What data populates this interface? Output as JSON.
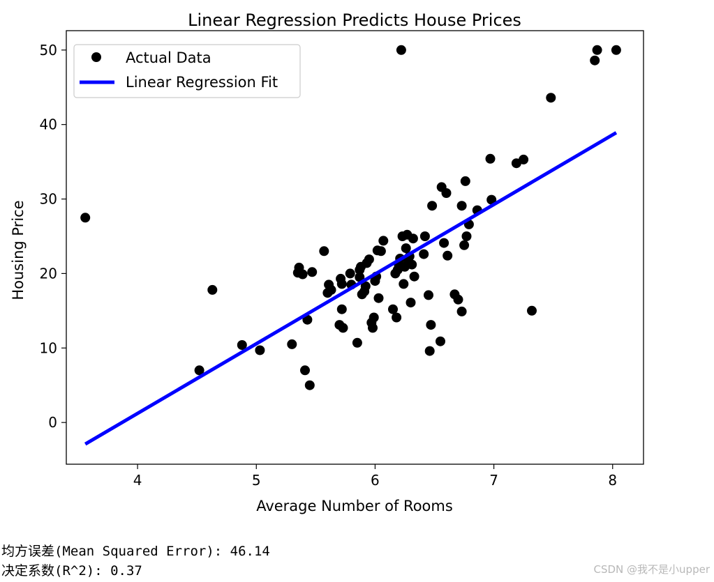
{
  "colors": {
    "points": "#000000",
    "fit_line": "#0000ff",
    "axes": "#000000"
  },
  "chart_data": {
    "type": "scatter",
    "title": "Linear Regression Predicts House Prices",
    "xlabel": "Average Number of Rooms",
    "ylabel": "Housing Price",
    "xlim": [
      3.4,
      8.26
    ],
    "ylim": [
      -5.6,
      52.6
    ],
    "xticks": [
      4,
      5,
      6,
      7,
      8
    ],
    "yticks": [
      0,
      10,
      20,
      30,
      40,
      50
    ],
    "grid": false,
    "legend": {
      "placement": "top-left",
      "entries": [
        "Actual Data",
        "Linear Regression Fit"
      ]
    },
    "series": [
      {
        "name": "Actual Data",
        "type": "scatter",
        "points": [
          [
            3.56,
            27.5
          ],
          [
            4.52,
            7.0
          ],
          [
            4.63,
            17.8
          ],
          [
            4.88,
            10.4
          ],
          [
            5.03,
            9.7
          ],
          [
            5.3,
            10.5
          ],
          [
            5.35,
            20.1
          ],
          [
            5.36,
            20.8
          ],
          [
            5.39,
            19.9
          ],
          [
            5.41,
            7.0
          ],
          [
            5.43,
            13.8
          ],
          [
            5.45,
            5.0
          ],
          [
            5.47,
            20.2
          ],
          [
            5.57,
            23.0
          ],
          [
            5.6,
            17.4
          ],
          [
            5.61,
            18.5
          ],
          [
            5.63,
            17.8
          ],
          [
            5.7,
            13.1
          ],
          [
            5.71,
            19.3
          ],
          [
            5.72,
            18.6
          ],
          [
            5.72,
            15.2
          ],
          [
            5.73,
            12.7
          ],
          [
            5.79,
            20.0
          ],
          [
            5.8,
            18.5
          ],
          [
            5.85,
            10.7
          ],
          [
            5.87,
            20.5
          ],
          [
            5.87,
            19.5
          ],
          [
            5.88,
            20.9
          ],
          [
            5.89,
            17.2
          ],
          [
            5.91,
            17.6
          ],
          [
            5.92,
            18.3
          ],
          [
            5.93,
            21.4
          ],
          [
            5.95,
            21.9
          ],
          [
            5.97,
            13.4
          ],
          [
            5.98,
            12.7
          ],
          [
            5.99,
            14.1
          ],
          [
            6.0,
            19.0
          ],
          [
            6.01,
            19.6
          ],
          [
            6.02,
            23.1
          ],
          [
            6.03,
            16.7
          ],
          [
            6.05,
            23.0
          ],
          [
            6.07,
            24.4
          ],
          [
            6.15,
            15.2
          ],
          [
            6.17,
            20.0
          ],
          [
            6.18,
            14.1
          ],
          [
            6.19,
            20.5
          ],
          [
            6.2,
            21.2
          ],
          [
            6.21,
            22.0
          ],
          [
            6.22,
            50.0
          ],
          [
            6.23,
            25.0
          ],
          [
            6.24,
            18.6
          ],
          [
            6.25,
            20.9
          ],
          [
            6.26,
            23.4
          ],
          [
            6.27,
            25.2
          ],
          [
            6.28,
            21.7
          ],
          [
            6.29,
            22.3
          ],
          [
            6.3,
            16.1
          ],
          [
            6.31,
            21.2
          ],
          [
            6.32,
            24.7
          ],
          [
            6.33,
            19.6
          ],
          [
            6.41,
            22.6
          ],
          [
            6.42,
            25.0
          ],
          [
            6.45,
            17.1
          ],
          [
            6.46,
            9.6
          ],
          [
            6.47,
            13.1
          ],
          [
            6.48,
            29.1
          ],
          [
            6.55,
            10.9
          ],
          [
            6.56,
            31.6
          ],
          [
            6.58,
            24.1
          ],
          [
            6.6,
            30.8
          ],
          [
            6.61,
            22.4
          ],
          [
            6.67,
            17.2
          ],
          [
            6.7,
            16.5
          ],
          [
            6.73,
            14.9
          ],
          [
            6.73,
            29.1
          ],
          [
            6.75,
            23.8
          ],
          [
            6.76,
            32.4
          ],
          [
            6.77,
            25.0
          ],
          [
            6.79,
            26.6
          ],
          [
            6.86,
            28.5
          ],
          [
            6.97,
            35.4
          ],
          [
            6.98,
            29.9
          ],
          [
            7.19,
            34.8
          ],
          [
            7.25,
            35.3
          ],
          [
            7.32,
            15.0
          ],
          [
            7.48,
            43.6
          ],
          [
            7.85,
            48.6
          ],
          [
            7.87,
            50.0
          ],
          [
            8.03,
            50.0
          ]
        ]
      },
      {
        "name": "Linear Regression Fit",
        "type": "line",
        "points": [
          [
            3.56,
            -2.9
          ],
          [
            8.03,
            38.9
          ]
        ]
      }
    ]
  },
  "output": {
    "mse_line": "均方误差(Mean Squared Error): 46.14",
    "r2_line": "决定系数(R^2): 0.37"
  },
  "watermark": "CSDN @我不是小upper"
}
